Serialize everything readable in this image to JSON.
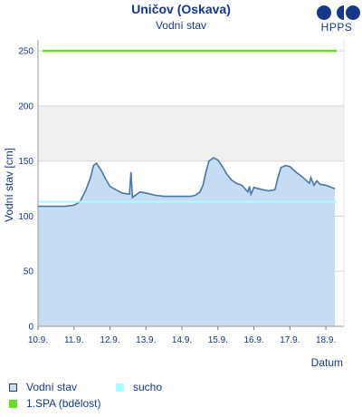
{
  "header": {
    "title": "Uničov (Oskava)",
    "subtitle": "Vodní stav",
    "logo_text": "HPPS"
  },
  "colors": {
    "title": "#17378a",
    "water_fill": "#c6dcf2",
    "water_line": "#4678a8",
    "drought_line": "#a9ffff",
    "spa1_line": "#66e020",
    "band": "#f0f0f0",
    "grid": "#d8d8d8"
  },
  "legend": {
    "water_label": "Vodní stav",
    "drought_label": "sucho",
    "spa_label": "1.SPA (bdělost)"
  },
  "chart_data": {
    "type": "area",
    "xlabel": "Datum",
    "ylabel": "Vodní stav [cm]",
    "ylim": [
      0,
      260
    ],
    "yticks": [
      0,
      50,
      100,
      150,
      200,
      250
    ],
    "xlim": [
      "2023-09-10",
      "2023-09-18 12:00"
    ],
    "xtick_labels": [
      "10.9.",
      "11.9.",
      "12.9.",
      "13.9.",
      "14.9.",
      "15.9.",
      "16.9.",
      "17.9.",
      "18.9."
    ],
    "band": [
      150,
      200
    ],
    "thresholds": {
      "spa1": 250,
      "drought": 113
    },
    "series": [
      {
        "name": "Vodní stav",
        "x": [
          "2023-09-10 00:00",
          "2023-09-10 12:00",
          "2023-09-10 18:00",
          "2023-09-11 00:00",
          "2023-09-11 04:00",
          "2023-09-11 08:00",
          "2023-09-11 11:00",
          "2023-09-11 13:00",
          "2023-09-11 15:00",
          "2023-09-11 18:00",
          "2023-09-11 21:00",
          "2023-09-12 00:00",
          "2023-09-12 04:00",
          "2023-09-12 08:00",
          "2023-09-12 13:00",
          "2023-09-12 14:00",
          "2023-09-12 15:00",
          "2023-09-12 20:00",
          "2023-09-13 00:00",
          "2023-09-13 06:00",
          "2023-09-13 12:00",
          "2023-09-14 00:00",
          "2023-09-14 06:00",
          "2023-09-14 09:00",
          "2023-09-14 12:00",
          "2023-09-14 14:00",
          "2023-09-14 16:00",
          "2023-09-14 18:00",
          "2023-09-14 21:00",
          "2023-09-15 00:00",
          "2023-09-15 03:00",
          "2023-09-15 06:00",
          "2023-09-15 09:00",
          "2023-09-15 12:00",
          "2023-09-15 16:00",
          "2023-09-15 20:00",
          "2023-09-15 21:00",
          "2023-09-15 22:00",
          "2023-09-16 00:00",
          "2023-09-16 06:00",
          "2023-09-16 10:00",
          "2023-09-16 14:00",
          "2023-09-16 16:00",
          "2023-09-16 18:00",
          "2023-09-16 21:00",
          "2023-09-17 00:00",
          "2023-09-17 04:00",
          "2023-09-17 08:00",
          "2023-09-17 12:00",
          "2023-09-17 13:00",
          "2023-09-17 14:00",
          "2023-09-17 16:00",
          "2023-09-17 18:00",
          "2023-09-17 20:00",
          "2023-09-18 00:00",
          "2023-09-18 06:00"
        ],
        "y": [
          109,
          109,
          109,
          110,
          113,
          124,
          135,
          146,
          148,
          142,
          134,
          127,
          124,
          121,
          120,
          140,
          117,
          122,
          121,
          119,
          118,
          118,
          118,
          119,
          122,
          128,
          140,
          150,
          153,
          151,
          145,
          138,
          133,
          130,
          128,
          122,
          127,
          120,
          126,
          124,
          123,
          124,
          135,
          144,
          146,
          145,
          140,
          136,
          131,
          130,
          135,
          128,
          132,
          129,
          128,
          125
        ]
      }
    ]
  }
}
